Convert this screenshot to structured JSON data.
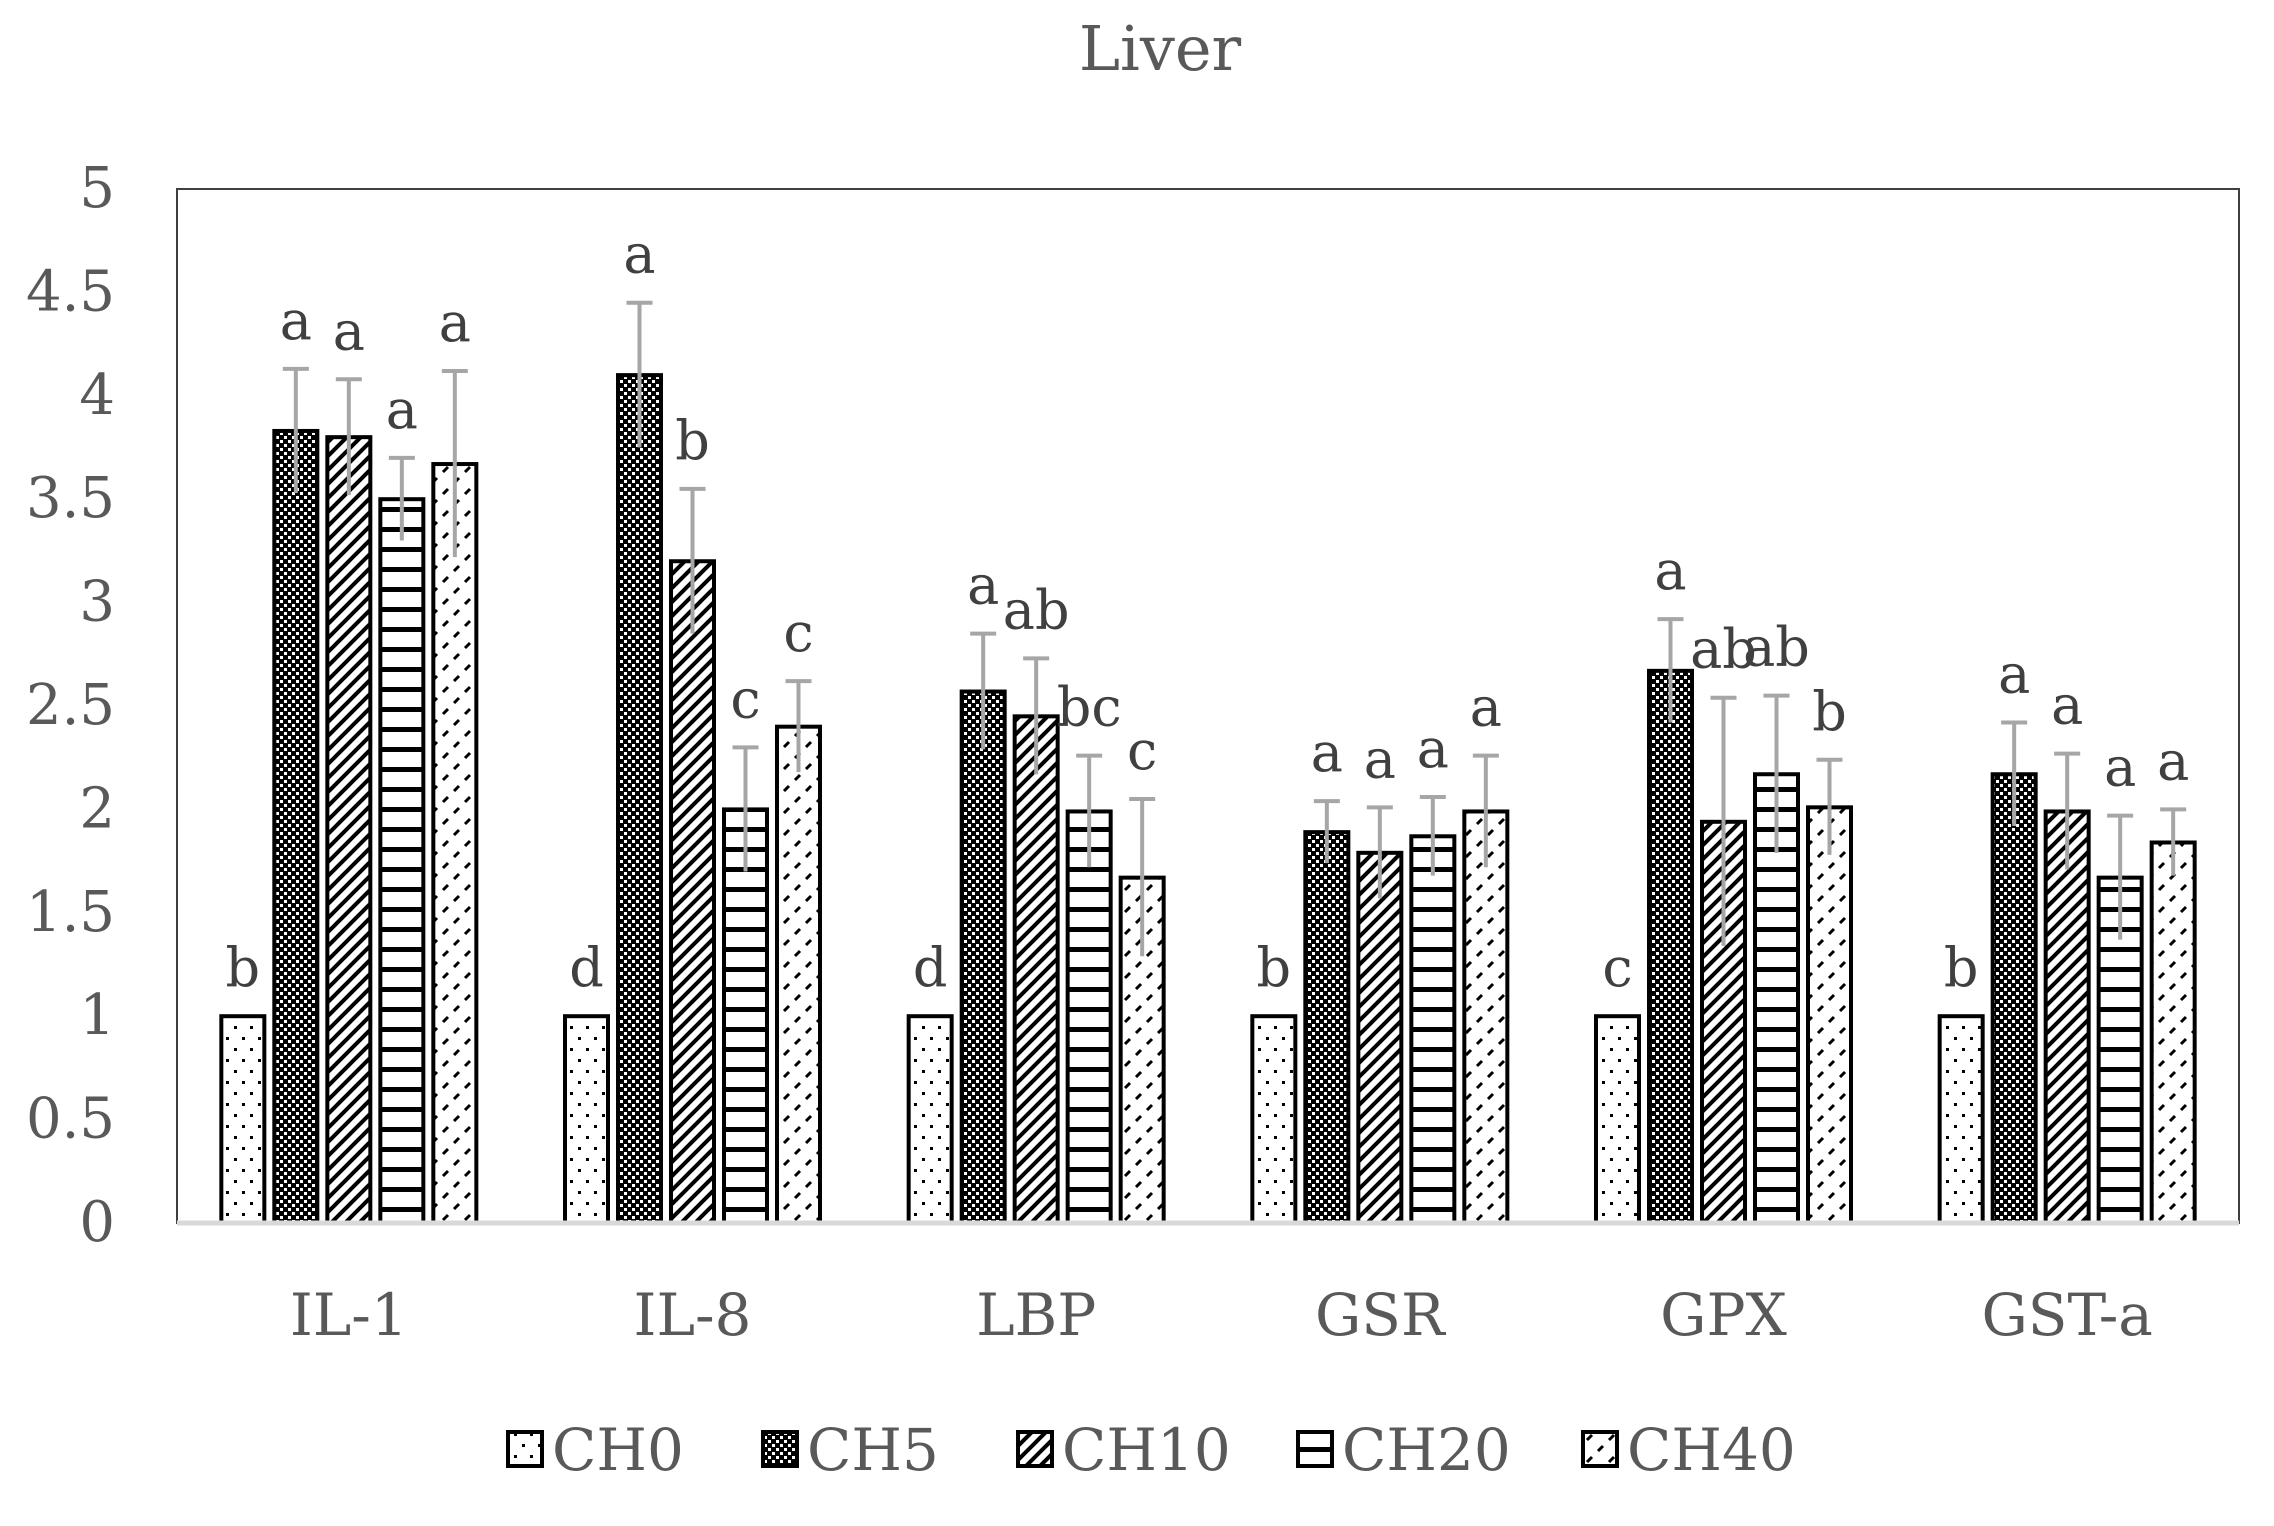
{
  "chart_data": {
    "type": "bar",
    "title": "Liver",
    "xlabel": "",
    "ylabel": "",
    "ylim": [
      0,
      5
    ],
    "yticks": [
      "0",
      "0.5",
      "1",
      "1.5",
      "2",
      "2.5",
      "3",
      "3.5",
      "4",
      "4.5",
      "5"
    ],
    "grid": false,
    "legend_position": "bottom",
    "categories": [
      "IL-1",
      "IL-8",
      "LBP",
      "GSR",
      "GPX",
      "GST-a"
    ],
    "series": [
      {
        "name": "CH0",
        "pattern": "dots",
        "values": [
          1,
          1,
          1,
          1,
          1,
          1
        ],
        "errors": [
          0,
          0,
          0,
          0,
          0,
          0
        ],
        "letters": [
          "b",
          "d",
          "d",
          "b",
          "c",
          "b"
        ]
      },
      {
        "name": "CH5",
        "pattern": "checker",
        "values": [
          3.83,
          4.1,
          2.57,
          1.89,
          2.67,
          2.17
        ],
        "errors": [
          0.3,
          0.35,
          0.28,
          0.15,
          0.25,
          0.25
        ],
        "letters": [
          "a",
          "a",
          "a",
          "a",
          "a",
          "a"
        ]
      },
      {
        "name": "CH10",
        "pattern": "diagonal",
        "values": [
          3.8,
          3.2,
          2.45,
          1.79,
          1.94,
          1.99
        ],
        "errors": [
          0.28,
          0.35,
          0.28,
          0.22,
          0.6,
          0.28
        ],
        "letters": [
          "a",
          "b",
          "ab",
          "a",
          "ab",
          "a"
        ]
      },
      {
        "name": "CH20",
        "pattern": "horizontal",
        "values": [
          3.5,
          2.0,
          1.99,
          1.87,
          2.17,
          1.67
        ],
        "errors": [
          0.2,
          0.3,
          0.27,
          0.19,
          0.38,
          0.3
        ],
        "letters": [
          "a",
          "c",
          "bc",
          "a",
          "ab",
          "a"
        ]
      },
      {
        "name": "CH40",
        "pattern": "dashes",
        "values": [
          3.67,
          2.4,
          1.67,
          1.99,
          2.01,
          1.84
        ],
        "errors": [
          0.45,
          0.22,
          0.38,
          0.27,
          0.23,
          0.16
        ],
        "letters": [
          "a",
          "c",
          "c",
          "a",
          "b",
          "a"
        ]
      }
    ]
  },
  "colors": {
    "bar_outline": "#000000",
    "error_bar": "#a6a6a6",
    "axis": "#d9d9d9",
    "frame": "#404040",
    "text": "#595959"
  }
}
